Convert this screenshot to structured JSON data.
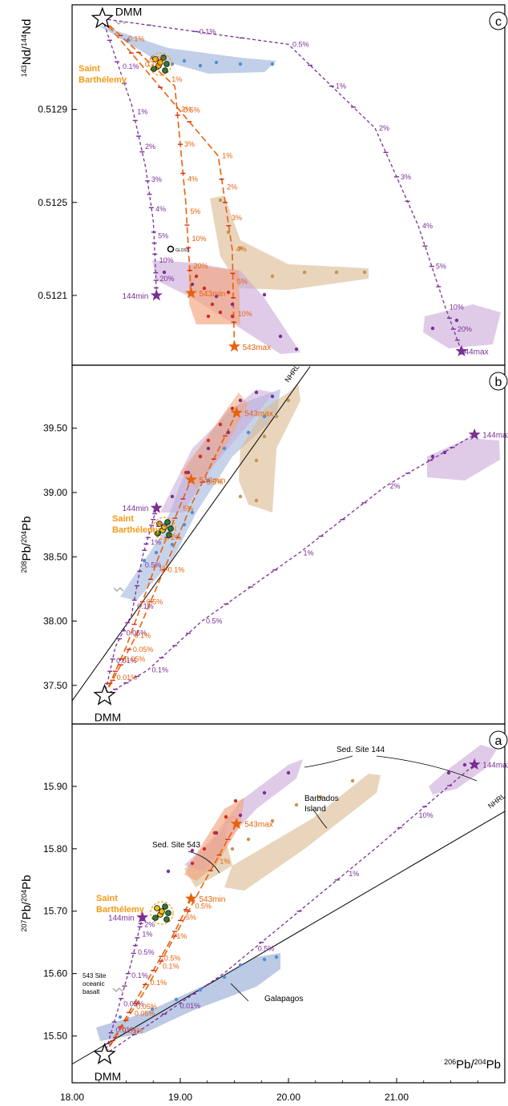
{
  "colors": {
    "axis": "#000000",
    "purple": "#7b2f95",
    "orange": "#e8620c",
    "red": "#d42a1c",
    "sb_label": "#f39a16",
    "blue_fill": "#8fa7d6",
    "blue_dot": "#4f8fd8",
    "tan_fill": "#d9b98f",
    "tan_dot": "#c7924f",
    "purple_fill": "#c9a9d8",
    "orange_fill": "#f2a47c",
    "gray": "#9a9a9a",
    "green": "#2f7d32",
    "yellow": "#f2c200"
  },
  "chart_data": [
    {
      "panel_label": "c",
      "type": "line",
      "ylabel": "143Nd/144Nd",
      "ylabel_sup_a": "143",
      "ylabel_main_a": "Nd/",
      "ylabel_sup_b": "144",
      "ylabel_main_b": "Nd",
      "xlim": [
        18.0,
        22.0
      ],
      "ylim": [
        0.5118,
        0.51335
      ],
      "yticks": [
        "0.5129",
        "0.5125",
        "0.5121"
      ],
      "ytick_values": [
        0.5129,
        0.5125,
        0.5121
      ],
      "end_members": [
        {
          "label": "DMM",
          "x": 18.28,
          "y": 0.51329
        },
        {
          "label": "144min",
          "x": 18.78,
          "y": 0.5121
        },
        {
          "label": "144max",
          "x": 21.6,
          "y": 0.51186
        },
        {
          "label": "543min",
          "x": 19.1,
          "y": 0.51211
        },
        {
          "label": "543max",
          "x": 19.5,
          "y": 0.51188
        }
      ],
      "series": [
        {
          "name": "144min",
          "color": "purple",
          "x": [
            18.28,
            18.55,
            18.68,
            18.75,
            18.77,
            18.78
          ],
          "y": [
            0.51329,
            0.51292,
            0.51265,
            0.51242,
            0.51223,
            0.5121
          ],
          "tick_labels": [
            "0.1%",
            "1%",
            "2%",
            "3%",
            "4%",
            "5%",
            "10%",
            "20%"
          ]
        },
        {
          "name": "144max",
          "color": "purple",
          "x": [
            18.28,
            20.0,
            20.8,
            21.2,
            21.45,
            21.6
          ],
          "y": [
            0.51329,
            0.51318,
            0.51282,
            0.5124,
            0.51205,
            0.51186
          ],
          "tick_labels": [
            "0.1%",
            "0.5%",
            "1%",
            "2%",
            "3%",
            "4%",
            "5%",
            "10%",
            "20%"
          ]
        },
        {
          "name": "543min",
          "color": "orange",
          "x": [
            18.28,
            18.95,
            19.05,
            19.1
          ],
          "y": [
            0.51329,
            0.513,
            0.5125,
            0.51211
          ],
          "tick_labels": [
            "0.1%",
            "0.5%",
            "1%",
            "2%",
            "3%",
            "4%",
            "5%",
            "10%",
            "20%"
          ]
        },
        {
          "name": "543max",
          "color": "orange",
          "x": [
            18.28,
            19.35,
            19.48,
            19.5
          ],
          "y": [
            0.51329,
            0.5127,
            0.5123,
            0.51188
          ],
          "tick_labels": [
            "0.1%",
            "0.5%",
            "1%",
            "2%",
            "3%",
            "4%",
            "5%",
            "10%"
          ]
        }
      ],
      "annotations": [
        "Saint",
        "Barthélemy",
        "GLOSS"
      ]
    },
    {
      "panel_label": "b",
      "type": "line",
      "ylabel": "208Pb/204Pb",
      "ylabel_sup_a": "208",
      "ylabel_main_a": "Pb/",
      "ylabel_sup_b": "204",
      "ylabel_main_b": "Pb",
      "xlim": [
        18.0,
        22.0
      ],
      "ylim": [
        37.2,
        39.99
      ],
      "yticks": [
        "39.50",
        "39.00",
        "38.50",
        "38.00",
        "37.50"
      ],
      "ytick_values": [
        39.5,
        39.0,
        38.5,
        38.0,
        37.5
      ],
      "reference_line": {
        "label": "NHRL",
        "x": [
          18.0,
          20.2
        ],
        "y": [
          37.38,
          39.98
        ]
      },
      "end_members": [
        {
          "label": "DMM",
          "x": 18.3,
          "y": 37.42
        },
        {
          "label": "144min",
          "x": 18.78,
          "y": 38.88
        },
        {
          "label": "144max",
          "x": 21.72,
          "y": 39.45
        },
        {
          "label": "543min",
          "x": 19.1,
          "y": 39.1
        },
        {
          "label": "543max",
          "x": 19.52,
          "y": 39.62
        }
      ],
      "series": [
        {
          "name": "144min",
          "color": "purple",
          "x": [
            18.3,
            18.4,
            18.55,
            18.65,
            18.72,
            18.78
          ],
          "y": [
            37.42,
            37.8,
            38.05,
            38.5,
            38.7,
            38.88
          ],
          "tick_labels": [
            "0.01%",
            "0.05%",
            "0.1%",
            "0.5%",
            "1%",
            "2%"
          ]
        },
        {
          "name": "144max",
          "color": "purple",
          "x": [
            18.3,
            18.7,
            19.2,
            20.1,
            20.9,
            21.72
          ],
          "y": [
            37.42,
            37.62,
            38.0,
            38.53,
            39.05,
            39.45
          ],
          "tick_labels": [
            "0.1%",
            "0.5%",
            "1%",
            "2%"
          ]
        },
        {
          "name": "543min",
          "color": "orange",
          "x": [
            18.3,
            18.5,
            18.8,
            19.1
          ],
          "y": [
            37.42,
            37.8,
            38.5,
            39.1
          ],
          "tick_labels": [
            "0.01%",
            "0.05%",
            "0.1%",
            "0.5%",
            "1%",
            "2%",
            "5%"
          ]
        },
        {
          "name": "543max",
          "color": "orange",
          "x": [
            18.3,
            18.6,
            19.1,
            19.52
          ],
          "y": [
            37.42,
            37.9,
            38.9,
            39.62
          ],
          "tick_labels": [
            "0.05%",
            "0.1%",
            "0.5%"
          ]
        }
      ],
      "annotations": [
        "Saint",
        "Barthélemy",
        "DMM"
      ]
    },
    {
      "panel_label": "a",
      "type": "line",
      "ylabel": "207Pb/204Pb",
      "ylabel_sup_a": "207",
      "ylabel_main_a": "Pb/",
      "ylabel_sup_b": "204",
      "ylabel_main_b": "Pb",
      "xlabel": "206Pb/204Pb",
      "xlabel_sup_a": "206",
      "xlabel_main_a": "Pb/",
      "xlabel_sup_b": "204",
      "xlabel_main_b": "Pb",
      "xlim": [
        18.0,
        22.0
      ],
      "ylim": [
        15.425,
        16.0
      ],
      "xticks": [
        "18.00",
        "19.00",
        "20.00",
        "21.00"
      ],
      "xtick_values": [
        18.0,
        19.0,
        20.0,
        21.0
      ],
      "yticks": [
        "15.90",
        "15.80",
        "15.70",
        "15.60",
        "15.50"
      ],
      "ytick_values": [
        15.9,
        15.8,
        15.7,
        15.6,
        15.5
      ],
      "reference_line": {
        "label": "NHRL",
        "x": [
          18.0,
          22.0
        ],
        "y": [
          15.455,
          15.86
        ]
      },
      "end_members": [
        {
          "label": "DMM",
          "x": 18.3,
          "y": 15.47
        },
        {
          "label": "144min",
          "x": 18.65,
          "y": 15.69
        },
        {
          "label": "144max",
          "x": 21.72,
          "y": 15.935
        },
        {
          "label": "543min",
          "x": 19.1,
          "y": 15.72
        },
        {
          "label": "543max",
          "x": 19.52,
          "y": 15.84
        }
      ],
      "series": [
        {
          "name": "144min",
          "color": "purple",
          "x": [
            18.3,
            18.42,
            18.55,
            18.62,
            18.65
          ],
          "y": [
            15.47,
            15.54,
            15.62,
            15.67,
            15.69
          ],
          "tick_labels": [
            "0.01%",
            "0.05%",
            "0.1%",
            "0.5%",
            "1%",
            "2%"
          ]
        },
        {
          "name": "144max",
          "color": "purple",
          "x": [
            18.3,
            19.4,
            20.8,
            21.72
          ],
          "y": [
            15.47,
            15.6,
            15.8,
            15.935
          ],
          "tick_labels": [
            "0.01%",
            "0.5%",
            "1%",
            "10%"
          ]
        },
        {
          "name": "543min",
          "color": "orange",
          "x": [
            18.3,
            18.6,
            18.9,
            19.1
          ],
          "y": [
            15.47,
            15.56,
            15.65,
            15.72
          ],
          "tick_labels": [
            "0.01%",
            "0.05%",
            "0.1%",
            "0.5%",
            "1%",
            "5%"
          ]
        },
        {
          "name": "543max",
          "color": "orange",
          "x": [
            18.3,
            18.7,
            19.2,
            19.52
          ],
          "y": [
            15.47,
            15.58,
            15.74,
            15.84
          ],
          "tick_labels": [
            "0.05%",
            "0.1%",
            "0.5%",
            "1%"
          ]
        }
      ],
      "annotations": [
        "Sed. Site 144",
        "Barbados",
        "Island",
        "Sed. Site 543",
        "Saint",
        "Barthélemy",
        "543 Site",
        "oceanic",
        "basalt",
        "Galapagos",
        "DMM"
      ]
    }
  ]
}
